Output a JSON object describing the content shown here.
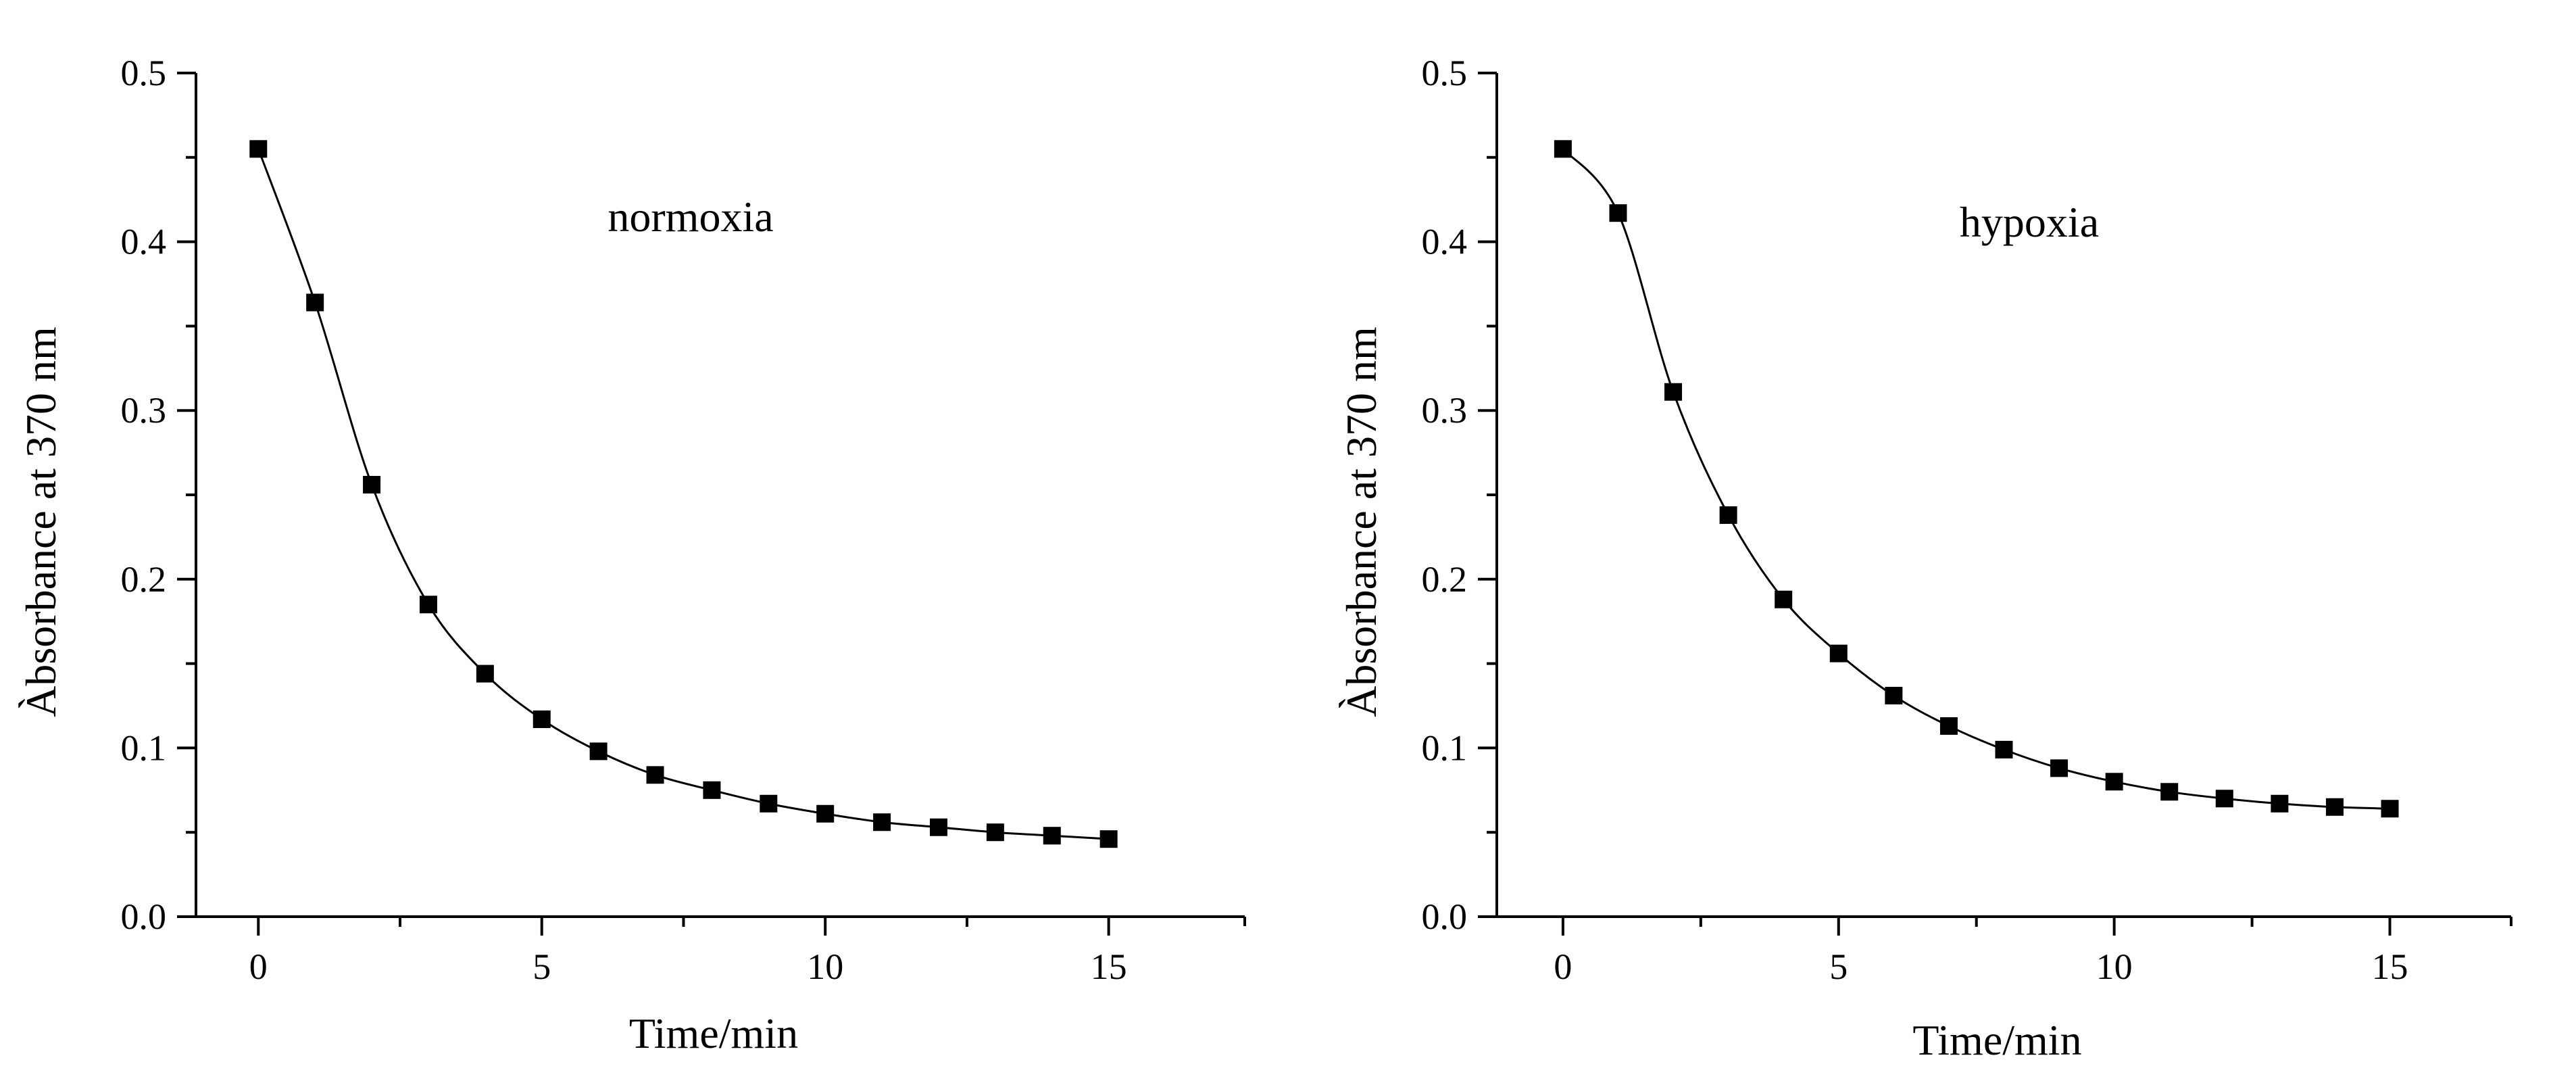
{
  "chart_data": [
    {
      "type": "line",
      "title": "",
      "annotation": "normoxia",
      "xlabel": "Time/min",
      "ylabel": "Àbsorbance at 370 nm",
      "xlim": [
        -1.1,
        17.4
      ],
      "ylim": [
        0.0,
        0.5
      ],
      "xticks": [
        "0",
        "5",
        "10",
        "15"
      ],
      "yticks": [
        "0.0",
        "0.1",
        "0.2",
        "0.3",
        "0.4",
        "0.5"
      ],
      "marker": "square",
      "series": [
        {
          "name": "normoxia",
          "x": [
            0,
            1,
            2,
            3,
            4,
            5,
            6,
            7,
            8,
            9,
            10,
            11,
            12,
            13,
            14,
            15
          ],
          "values": [
            0.455,
            0.364,
            0.256,
            0.185,
            0.144,
            0.117,
            0.098,
            0.084,
            0.075,
            0.067,
            0.061,
            0.056,
            0.053,
            0.05,
            0.048,
            0.046
          ]
        }
      ]
    },
    {
      "type": "line",
      "title": "",
      "annotation": "hypoxia",
      "xlabel": "Time/min",
      "ylabel": "Àbsorbance at 370 nm",
      "xlim": [
        -1.2,
        17.2
      ],
      "ylim": [
        0.0,
        0.5
      ],
      "xticks": [
        "0",
        "5",
        "10",
        "15"
      ],
      "yticks": [
        "0.0",
        "0.1",
        "0.2",
        "0.3",
        "0.4",
        "0.5"
      ],
      "marker": "square",
      "series": [
        {
          "name": "hypoxia",
          "x": [
            0,
            1,
            2,
            3,
            4,
            5,
            6,
            7,
            8,
            9,
            10,
            11,
            12,
            13,
            14,
            15
          ],
          "values": [
            0.455,
            0.417,
            0.311,
            0.238,
            0.188,
            0.156,
            0.131,
            0.113,
            0.099,
            0.088,
            0.08,
            0.074,
            0.07,
            0.067,
            0.065,
            0.064
          ]
        }
      ]
    }
  ]
}
